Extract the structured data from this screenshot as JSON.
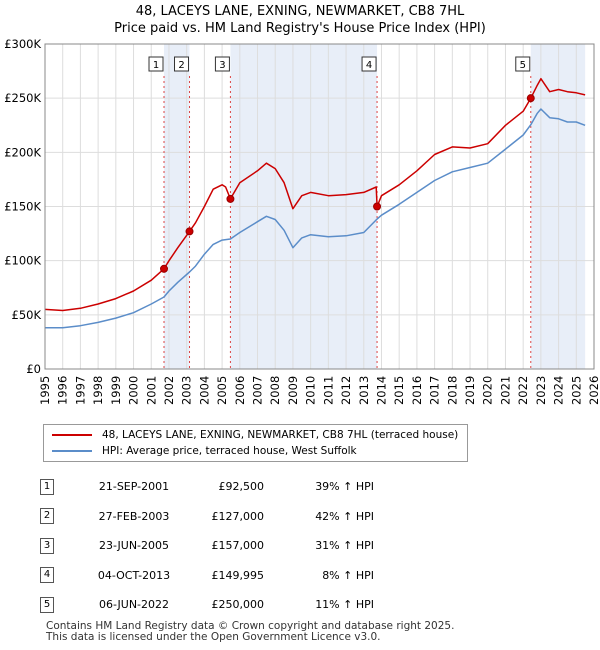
{
  "title_line1": "48, LACEYS LANE, EXNING, NEWMARKET, CB8 7HL",
  "title_line2": "Price paid vs. HM Land Registry's House Price Index (HPI)",
  "chart_data": {
    "type": "line",
    "title": "48, LACEYS LANE, EXNING, NEWMARKET, CB8 7HL — Price paid vs. HM Land Registry's House Price Index (HPI)",
    "xlim": [
      1995,
      2026
    ],
    "ylim": [
      0,
      300000
    ],
    "x_ticks": [
      1995,
      1996,
      1997,
      1998,
      1999,
      2000,
      2001,
      2002,
      2003,
      2004,
      2005,
      2006,
      2007,
      2008,
      2009,
      2010,
      2011,
      2012,
      2013,
      2014,
      2015,
      2016,
      2017,
      2018,
      2019,
      2020,
      2021,
      2022,
      2023,
      2024,
      2025,
      2026
    ],
    "y_ticks": [
      {
        "value": 0,
        "label": "£0"
      },
      {
        "value": 50000,
        "label": "£50K"
      },
      {
        "value": 100000,
        "label": "£100K"
      },
      {
        "value": 150000,
        "label": "£150K"
      },
      {
        "value": 200000,
        "label": "£200K"
      },
      {
        "value": 250000,
        "label": "£250K"
      },
      {
        "value": 300000,
        "label": "£300K"
      }
    ],
    "shaded_periods": [
      [
        2001.72,
        2003.16
      ],
      [
        2005.47,
        2013.75
      ],
      [
        2022.43,
        2025.5
      ]
    ],
    "series": [
      {
        "name": "48, LACEYS LANE, EXNING, NEWMARKET, CB8 7HL (terraced house)",
        "color": "#cc0000",
        "x": [
          1995,
          1996,
          1997,
          1998,
          1999,
          2000,
          2001,
          2001.72,
          2002,
          2002.5,
          2003.16,
          2003.5,
          2004,
          2004.5,
          2005,
          2005.2,
          2005.47,
          2006,
          2007,
          2007.5,
          2008,
          2008.5,
          2009,
          2009.5,
          2010,
          2011,
          2012,
          2013,
          2013.7,
          2013.75,
          2014,
          2015,
          2016,
          2017,
          2018,
          2019,
          2020,
          2021,
          2022,
          2022.43,
          2022.8,
          2023,
          2023.5,
          2024,
          2024.5,
          2025,
          2025.5
        ],
        "y": [
          55000,
          54000,
          56000,
          60000,
          65000,
          72000,
          82000,
          92500,
          100000,
          112000,
          127000,
          135000,
          150000,
          166000,
          170000,
          168000,
          157000,
          172000,
          183000,
          190000,
          185000,
          172000,
          148000,
          160000,
          163000,
          160000,
          161000,
          163000,
          168000,
          149995,
          160000,
          170000,
          183000,
          198000,
          205000,
          204000,
          208000,
          225000,
          238000,
          250000,
          262000,
          268000,
          256000,
          258000,
          256000,
          255000,
          253000
        ]
      },
      {
        "name": "HPI: Average price, terraced house, West Suffolk",
        "color": "#5b8dc9",
        "x": [
          1995,
          1996,
          1997,
          1998,
          1999,
          2000,
          2001,
          2001.72,
          2002,
          2002.5,
          2003.16,
          2003.5,
          2004,
          2004.5,
          2005,
          2005.47,
          2006,
          2007,
          2007.5,
          2008,
          2008.5,
          2009,
          2009.5,
          2010,
          2011,
          2012,
          2013,
          2013.75,
          2014,
          2015,
          2016,
          2017,
          2018,
          2019,
          2020,
          2021,
          2022,
          2022.43,
          2022.8,
          2023,
          2023.5,
          2024,
          2024.5,
          2025,
          2025.5
        ],
        "y": [
          38000,
          38000,
          40000,
          43000,
          47000,
          52000,
          60000,
          66500,
          72000,
          80000,
          89500,
          95000,
          106000,
          115000,
          119000,
          120000,
          126000,
          136000,
          141000,
          138000,
          128000,
          112000,
          121000,
          124000,
          122000,
          123000,
          126000,
          138500,
          142000,
          152000,
          163000,
          174000,
          182000,
          186000,
          190000,
          203000,
          216000,
          225500,
          236000,
          240000,
          232000,
          231000,
          228000,
          228000,
          225000
        ]
      }
    ],
    "markers": [
      {
        "label": "1",
        "x": 2001.72,
        "y": 92500
      },
      {
        "label": "2",
        "x": 2003.16,
        "y": 127000
      },
      {
        "label": "3",
        "x": 2005.47,
        "y": 157000
      },
      {
        "label": "4",
        "x": 2013.75,
        "y": 149995
      },
      {
        "label": "5",
        "x": 2022.43,
        "y": 250000
      }
    ]
  },
  "legend": {
    "red_label": "48, LACEYS LANE, EXNING, NEWMARKET, CB8 7HL (terraced house)",
    "blue_label": "HPI: Average price, terraced house, West Suffolk"
  },
  "transactions": [
    {
      "num": "1",
      "date": "21-SEP-2001",
      "price": "£92,500",
      "hpi": "39% ↑ HPI"
    },
    {
      "num": "2",
      "date": "27-FEB-2003",
      "price": "£127,000",
      "hpi": "42% ↑ HPI"
    },
    {
      "num": "3",
      "date": "23-JUN-2005",
      "price": "£157,000",
      "hpi": "31% ↑ HPI"
    },
    {
      "num": "4",
      "date": "04-OCT-2013",
      "price": "£149,995",
      "hpi": "8% ↑ HPI"
    },
    {
      "num": "5",
      "date": "06-JUN-2022",
      "price": "£250,000",
      "hpi": "11% ↑ HPI"
    }
  ],
  "footer": {
    "line1": "Contains HM Land Registry data © Crown copyright and database right 2025.",
    "line2": "This data is licensed under the Open Government Licence v3.0."
  }
}
